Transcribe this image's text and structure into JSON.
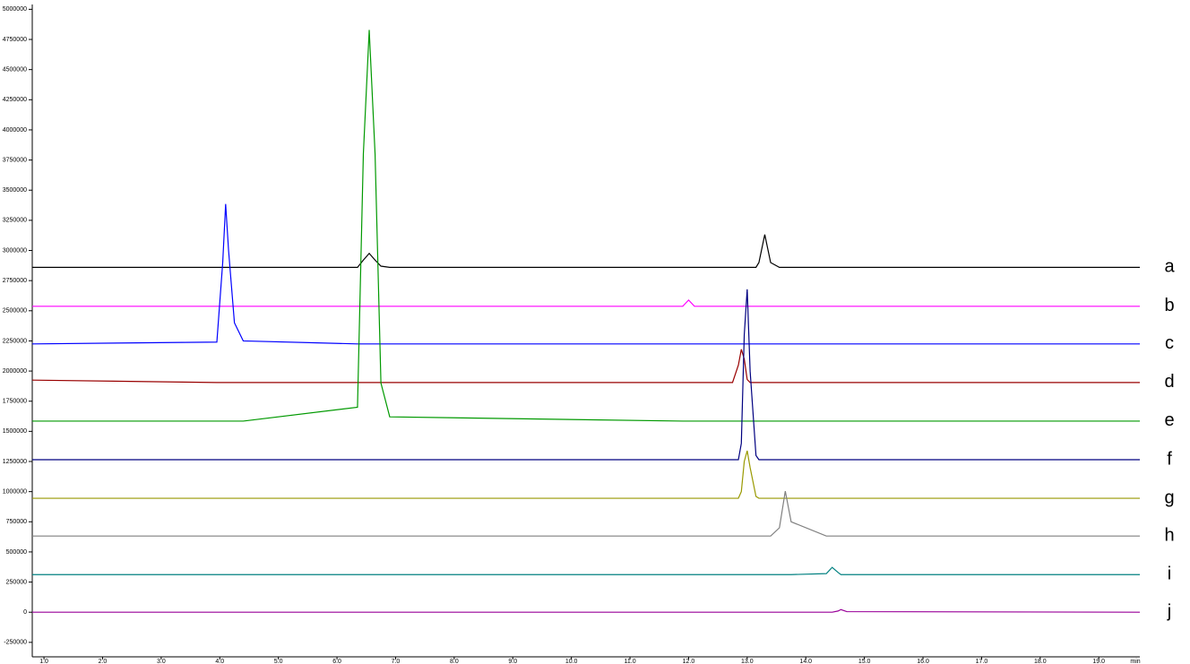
{
  "chart_data": {
    "type": "line",
    "x_label": "min",
    "x": [
      0.8,
      3.95,
      4.05,
      4.1,
      4.15,
      4.25,
      4.4,
      6.35,
      6.45,
      6.55,
      6.65,
      6.75,
      6.9,
      11.9,
      12.0,
      12.1,
      12.75,
      12.85,
      12.9,
      12.95,
      13.0,
      13.05,
      13.15,
      13.2,
      13.3,
      13.4,
      13.55,
      13.65,
      13.75,
      14.35,
      14.45,
      14.55,
      14.6,
      14.7,
      19.7
    ],
    "series": [
      {
        "name": "a",
        "color": "#000000",
        "values": [
          2860000,
          2860000,
          2860000,
          2860000,
          2860000,
          2860000,
          2860000,
          2860000,
          2920000,
          2976000,
          2920000,
          2870000,
          2860000,
          2860000,
          2860000,
          2860000,
          2860000,
          2860000,
          2860000,
          2860000,
          2860000,
          2860000,
          2860000,
          2900000,
          3132000,
          2900000,
          2860000,
          2860000,
          2860000,
          2860000,
          2860000,
          2860000,
          2860000,
          2860000,
          2860000
        ]
      },
      {
        "name": "b",
        "color": "#ff00ff",
        "values": [
          2537000,
          2537000,
          2537000,
          2537000,
          2537000,
          2537000,
          2537000,
          2537000,
          2537000,
          2537000,
          2537000,
          2537000,
          2537000,
          2537000,
          2589000,
          2537000,
          2537000,
          2537000,
          2537000,
          2537000,
          2537000,
          2537000,
          2537000,
          2537000,
          2537000,
          2537000,
          2537000,
          2537000,
          2537000,
          2537000,
          2537000,
          2537000,
          2537000,
          2537000,
          2537000
        ]
      },
      {
        "name": "c",
        "color": "#0000ff",
        "values": [
          2225000,
          2240000,
          2900000,
          3385000,
          3000000,
          2400000,
          2250000,
          2225000,
          2225000,
          2225000,
          2225000,
          2225000,
          2225000,
          2225000,
          2225000,
          2225000,
          2225000,
          2225000,
          2225000,
          2225000,
          2225000,
          2225000,
          2225000,
          2225000,
          2225000,
          2225000,
          2225000,
          2225000,
          2225000,
          2225000,
          2225000,
          2225000,
          2225000,
          2225000,
          2225000
        ]
      },
      {
        "name": "d",
        "color": "#990000",
        "values": [
          1925000,
          1905000,
          1905000,
          1905000,
          1905000,
          1905000,
          1905000,
          1905000,
          1905000,
          1905000,
          1905000,
          1905000,
          1905000,
          1905000,
          1905000,
          1905000,
          1905000,
          2050000,
          2180000,
          2100000,
          1930000,
          1905000,
          1905000,
          1905000,
          1905000,
          1905000,
          1905000,
          1905000,
          1905000,
          1905000,
          1905000,
          1905000,
          1905000,
          1905000,
          1905000
        ]
      },
      {
        "name": "e",
        "color": "#009900",
        "values": [
          1585000,
          1585000,
          1585000,
          1585000,
          1585000,
          1585000,
          1585000,
          1700000,
          3800000,
          4829000,
          3800000,
          1900000,
          1620000,
          1585000,
          1585000,
          1585000,
          1585000,
          1585000,
          1585000,
          1585000,
          1585000,
          1585000,
          1585000,
          1585000,
          1585000,
          1585000,
          1585000,
          1585000,
          1585000,
          1585000,
          1585000,
          1585000,
          1585000,
          1585000,
          1585000
        ]
      },
      {
        "name": "f",
        "color": "#000080",
        "values": [
          1265000,
          1265000,
          1265000,
          1265000,
          1265000,
          1265000,
          1265000,
          1265000,
          1265000,
          1265000,
          1265000,
          1265000,
          1265000,
          1265000,
          1265000,
          1265000,
          1265000,
          1265000,
          1400000,
          2300000,
          2678000,
          2000000,
          1300000,
          1265000,
          1265000,
          1265000,
          1265000,
          1265000,
          1265000,
          1265000,
          1265000,
          1265000,
          1265000,
          1265000,
          1265000
        ]
      },
      {
        "name": "g",
        "color": "#999900",
        "values": [
          945000,
          945000,
          945000,
          945000,
          945000,
          945000,
          945000,
          945000,
          945000,
          945000,
          945000,
          945000,
          945000,
          945000,
          945000,
          945000,
          945000,
          945000,
          1000000,
          1250000,
          1339000,
          1200000,
          960000,
          945000,
          945000,
          945000,
          945000,
          945000,
          945000,
          945000,
          945000,
          945000,
          945000,
          945000,
          945000
        ]
      },
      {
        "name": "h",
        "color": "#808080",
        "values": [
          632000,
          632000,
          632000,
          632000,
          632000,
          632000,
          632000,
          632000,
          632000,
          632000,
          632000,
          632000,
          632000,
          632000,
          632000,
          632000,
          632000,
          632000,
          632000,
          632000,
          632000,
          632000,
          632000,
          632000,
          632000,
          632000,
          700000,
          1004000,
          750000,
          632000,
          632000,
          632000,
          632000,
          632000,
          632000
        ]
      },
      {
        "name": "i",
        "color": "#008080",
        "values": [
          312000,
          312000,
          312000,
          312000,
          312000,
          312000,
          312000,
          312000,
          312000,
          312000,
          312000,
          312000,
          312000,
          312000,
          312000,
          312000,
          312000,
          312000,
          312000,
          312000,
          312000,
          312000,
          312000,
          312000,
          312000,
          312000,
          312000,
          312000,
          312000,
          320000,
          372000,
          330000,
          312000,
          312000,
          312000
        ]
      },
      {
        "name": "j",
        "color": "#990099",
        "values": [
          0,
          0,
          0,
          0,
          0,
          0,
          0,
          0,
          0,
          0,
          0,
          0,
          0,
          0,
          0,
          0,
          0,
          0,
          0,
          0,
          0,
          0,
          0,
          0,
          0,
          0,
          0,
          0,
          0,
          0,
          0,
          10000,
          22000,
          5000,
          0
        ]
      }
    ],
    "xlim": [
      0.8,
      19.7
    ],
    "xticks": [
      {
        "value": 1,
        "label": "1.0"
      },
      {
        "value": 2,
        "label": "2.0"
      },
      {
        "value": 3,
        "label": "3.0"
      },
      {
        "value": 4,
        "label": "4.0"
      },
      {
        "value": 5,
        "label": "5.0"
      },
      {
        "value": 6,
        "label": "6.0"
      },
      {
        "value": 7,
        "label": "7.0"
      },
      {
        "value": 8,
        "label": "8.0"
      },
      {
        "value": 9,
        "label": "9.0"
      },
      {
        "value": 10,
        "label": "10.0"
      },
      {
        "value": 11,
        "label": "11.0"
      },
      {
        "value": 12,
        "label": "12.0"
      },
      {
        "value": 13,
        "label": "13.0"
      },
      {
        "value": 14,
        "label": "14.0"
      },
      {
        "value": 15,
        "label": "15.0"
      },
      {
        "value": 16,
        "label": "16.0"
      },
      {
        "value": 17,
        "label": "17.0"
      },
      {
        "value": 18,
        "label": "18.0"
      },
      {
        "value": 19,
        "label": "19.0"
      }
    ],
    "ylim": [
      -370000,
      5040000
    ],
    "yticks": [
      -250000,
      0,
      250000,
      500000,
      750000,
      1000000,
      1250000,
      1500000,
      1750000,
      2000000,
      2250000,
      2500000,
      2750000,
      3000000,
      3250000,
      3500000,
      3750000,
      4000000,
      4250000,
      4500000,
      4750000,
      5000000
    ],
    "grid": false
  }
}
